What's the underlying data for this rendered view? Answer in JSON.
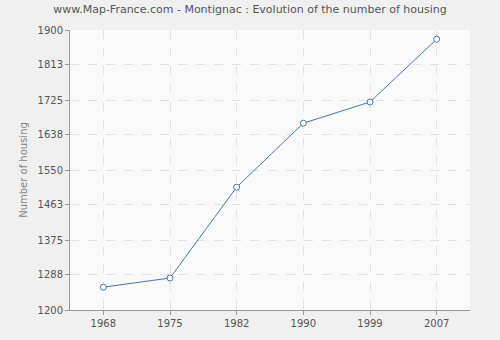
{
  "chart_data": {
    "type": "line",
    "title": "www.Map-France.com - Montignac : Evolution of the number of housing",
    "y_label": "Number of housing",
    "categories": [
      "1968",
      "1975",
      "1982",
      "1990",
      "1999",
      "2007"
    ],
    "values": [
      1257,
      1280,
      1507,
      1667,
      1720,
      1877
    ],
    "color": "#4a76a8",
    "marker": "circle",
    "line_style": "solid",
    "ylim": [
      1200,
      1900
    ],
    "yticks": [
      1200,
      1288,
      1375,
      1463,
      1550,
      1638,
      1725,
      1813,
      1900
    ],
    "grid": true
  }
}
